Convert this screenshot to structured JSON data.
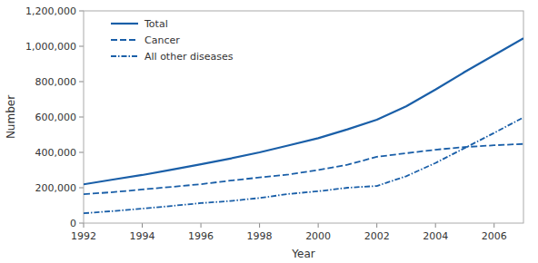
{
  "chart_data": {
    "type": "line",
    "x": [
      1992,
      1993,
      1994,
      1995,
      1996,
      1997,
      1998,
      1999,
      2000,
      2001,
      2002,
      2003,
      2004,
      2005,
      2006,
      2007
    ],
    "series": [
      {
        "name": "Total",
        "color": "#1a5fa8",
        "line_style": "solid",
        "values": [
          219300,
          246000,
          272000,
          302000,
          333000,
          365000,
          400000,
          440000,
          480000,
          530000,
          585000,
          660000,
          755000,
          855000,
          950000,
          1045100
        ]
      },
      {
        "name": "Cancer",
        "color": "#1a5fa8",
        "line_style": "dashed",
        "values": [
          163600,
          175000,
          190000,
          205000,
          220000,
          240000,
          258000,
          275000,
          300000,
          330000,
          375000,
          395000,
          415000,
          430000,
          440000,
          447600
        ]
      },
      {
        "name": "All other diseases",
        "color": "#1a5fa8",
        "line_style": "dashdot",
        "values": [
          55500,
          68000,
          82000,
          97000,
          113000,
          125000,
          142000,
          165000,
          180000,
          200000,
          210000,
          265000,
          340000,
          425000,
          510000,
          597500
        ]
      }
    ],
    "xlabel": "Year",
    "ylabel": "Number",
    "xlim": [
      1992,
      2007
    ],
    "xticks": [
      1992,
      1994,
      1996,
      1998,
      2000,
      2002,
      2004,
      2006
    ],
    "ylim": [
      0,
      1200000
    ],
    "yticks": [
      0,
      {
        "value": 200000,
        "label": "200,000"
      },
      {
        "value": 400000,
        "label": "400,000"
      },
      {
        "value": 600000,
        "label": "600,000"
      },
      {
        "value": 800000,
        "label": "800,000"
      },
      {
        "value": 1000000,
        "label": "1,000,000"
      },
      {
        "value": 1200000,
        "label": "1,200,000"
      }
    ],
    "grid": false,
    "legend": "upper left"
  }
}
